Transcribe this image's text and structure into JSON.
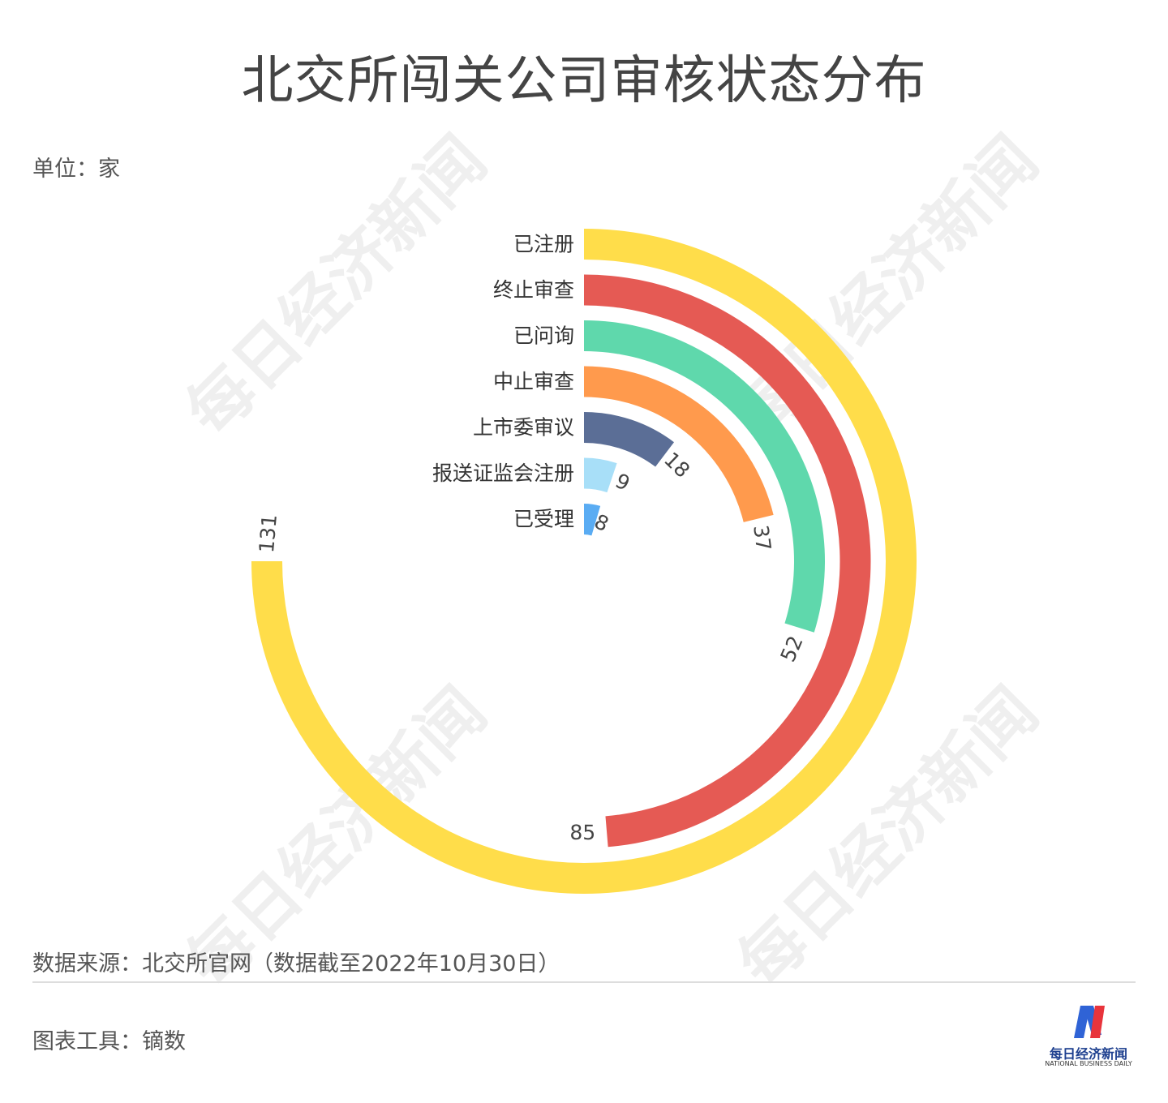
{
  "title": "北交所闯关公司审核状态分布",
  "unit": "单位：家",
  "source": "数据来源：北交所官网（数据截至2022年10月30日）",
  "tool": "图表工具：镝数",
  "watermark": "每日经济新闻",
  "logo": {
    "name": "每日经济新闻",
    "sub": "NATIONAL BUSINESS DAILY",
    "colors": [
      "#2f63d6",
      "#e8343c"
    ]
  },
  "chart_data": {
    "type": "radial-bar",
    "max": 131,
    "categories": [
      "已注册",
      "终止审查",
      "已问询",
      "中止审查",
      "上市委审议",
      "报送证监会注册",
      "已受理"
    ],
    "values": [
      131,
      85,
      52,
      37,
      18,
      9,
      8
    ],
    "colors": [
      "#ffdd4a",
      "#e55a54",
      "#5fd8ac",
      "#ff9a4d",
      "#5b6e96",
      "#a8dff8",
      "#5aacf3"
    ]
  }
}
